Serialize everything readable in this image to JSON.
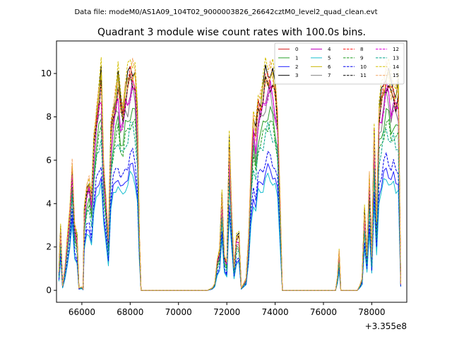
{
  "figure": {
    "suptitle": "Data file: modeM0/AS1A09_104T02_9000003826_26642cztM0_level2_quad_clean.evt",
    "title": "Quadrant 3 module wise count rates with 100.0s bins."
  },
  "chart_data": {
    "type": "line",
    "title": "Quadrant 3 module wise count rates with 100.0s bins.",
    "xlabel": "",
    "ylabel": "",
    "x_offset_label": "+3.355e8",
    "xlim": [
      64950,
      79450
    ],
    "ylim": [
      -0.55,
      11.5
    ],
    "xticks": [
      66000,
      68000,
      70000,
      72000,
      74000,
      76000,
      78000
    ],
    "xtick_labels": [
      "66000",
      "68000",
      "70000",
      "72000",
      "74000",
      "76000",
      "78000"
    ],
    "yticks": [
      0,
      2,
      4,
      6,
      8,
      10
    ],
    "ytick_labels": [
      "0",
      "2",
      "4",
      "6",
      "8",
      "10"
    ],
    "grid": false,
    "legend_position": "top-right",
    "series": [
      {
        "name": "0",
        "color": "#d62728",
        "dash": "solid",
        "scale": 1.0
      },
      {
        "name": "1",
        "color": "#2ca02c",
        "dash": "solid",
        "scale": 0.85
      },
      {
        "name": "2",
        "color": "#1f1fff",
        "dash": "solid",
        "scale": 0.58
      },
      {
        "name": "3",
        "color": "#000000",
        "dash": "solid",
        "scale": 1.06
      },
      {
        "name": "4",
        "color": "#bf00bf",
        "dash": "solid",
        "scale": 0.96
      },
      {
        "name": "5",
        "color": "#17becf",
        "dash": "solid",
        "scale": 0.54
      },
      {
        "name": "6",
        "color": "#c8b400",
        "dash": "solid",
        "scale": 1.03
      },
      {
        "name": "7",
        "color": "#7f7f7f",
        "dash": "solid",
        "scale": 0.92
      },
      {
        "name": "8",
        "color": "#ff1f1f",
        "dash": "dashed",
        "scale": 1.02
      },
      {
        "name": "9",
        "color": "#1a9a1a",
        "dash": "dashed",
        "scale": 0.8
      },
      {
        "name": "10",
        "color": "#0000ee",
        "dash": "dashed",
        "scale": 0.64
      },
      {
        "name": "11",
        "color": "#000000",
        "dash": "dashed",
        "scale": 1.0
      },
      {
        "name": "12",
        "color": "#dd00dd",
        "dash": "dashed",
        "scale": 0.94
      },
      {
        "name": "13",
        "color": "#00a38a",
        "dash": "dashed",
        "scale": 0.77
      },
      {
        "name": "14",
        "color": "#d4c000",
        "dash": "dashed",
        "scale": 1.1
      },
      {
        "name": "15",
        "color": "#f4a460",
        "dash": "dashed",
        "scale": 1.05
      }
    ],
    "profile": [
      [
        65050,
        0.8
      ],
      [
        65120,
        2.7
      ],
      [
        65200,
        0.2
      ],
      [
        65300,
        1.0
      ],
      [
        65400,
        2.2
      ],
      [
        65500,
        3.4
      ],
      [
        65600,
        5.6
      ],
      [
        65700,
        2.8
      ],
      [
        65800,
        2.3
      ],
      [
        65880,
        0.1
      ],
      [
        66000,
        0.15
      ],
      [
        66050,
        0.05
      ],
      [
        66100,
        3.4
      ],
      [
        66200,
        4.6
      ],
      [
        66300,
        4.8
      ],
      [
        66400,
        4.0
      ],
      [
        66500,
        6.5
      ],
      [
        66600,
        7.8
      ],
      [
        66700,
        8.6
      ],
      [
        66800,
        9.3
      ],
      [
        66900,
        5.5
      ],
      [
        67000,
        4.0
      ],
      [
        67100,
        2.2
      ],
      [
        67200,
        6.8
      ],
      [
        67300,
        8.0
      ],
      [
        67400,
        8.6
      ],
      [
        67500,
        9.2
      ],
      [
        67600,
        8.2
      ],
      [
        67700,
        8.0
      ],
      [
        67800,
        8.8
      ],
      [
        67900,
        9.1
      ],
      [
        68000,
        9.7
      ],
      [
        68100,
        9.8
      ],
      [
        68200,
        9.4
      ],
      [
        68300,
        7.5
      ],
      [
        68380,
        2.5
      ],
      [
        68450,
        0.0
      ],
      [
        71200,
        0.0
      ],
      [
        71400,
        0.1
      ],
      [
        71500,
        0.3
      ],
      [
        71600,
        1.3
      ],
      [
        71700,
        1.7
      ],
      [
        71800,
        4.2
      ],
      [
        71900,
        1.5
      ],
      [
        72000,
        1.2
      ],
      [
        72100,
        6.4
      ],
      [
        72200,
        3.5
      ],
      [
        72300,
        1.0
      ],
      [
        72400,
        2.3
      ],
      [
        72500,
        2.4
      ],
      [
        72600,
        0.1
      ],
      [
        72700,
        0.3
      ],
      [
        72800,
        0.5
      ],
      [
        72900,
        2.2
      ],
      [
        73000,
        5.5
      ],
      [
        73100,
        7.5
      ],
      [
        73200,
        6.8
      ],
      [
        73300,
        8.3
      ],
      [
        73400,
        8.4
      ],
      [
        73500,
        8.8
      ],
      [
        73600,
        9.4
      ],
      [
        73700,
        9.6
      ],
      [
        73800,
        9.6
      ],
      [
        73900,
        9.3
      ],
      [
        74000,
        8.8
      ],
      [
        74100,
        7.8
      ],
      [
        74200,
        4.2
      ],
      [
        74300,
        0.0
      ],
      [
        76500,
        0.0
      ],
      [
        76580,
        0.6
      ],
      [
        76650,
        1.7
      ],
      [
        76720,
        0.0
      ],
      [
        77400,
        0.0
      ],
      [
        77500,
        0.2
      ],
      [
        77600,
        0.5
      ],
      [
        77700,
        3.5
      ],
      [
        77800,
        1.5
      ],
      [
        77900,
        5.0
      ],
      [
        78000,
        1.5
      ],
      [
        78100,
        7.0
      ],
      [
        78200,
        3.0
      ],
      [
        78300,
        7.8
      ],
      [
        78400,
        8.4
      ],
      [
        78500,
        9.1
      ],
      [
        78600,
        9.6
      ],
      [
        78700,
        9.4
      ],
      [
        78800,
        8.8
      ],
      [
        78900,
        9.0
      ],
      [
        79000,
        8.6
      ],
      [
        79100,
        8.8
      ],
      [
        79200,
        0.3
      ]
    ]
  }
}
